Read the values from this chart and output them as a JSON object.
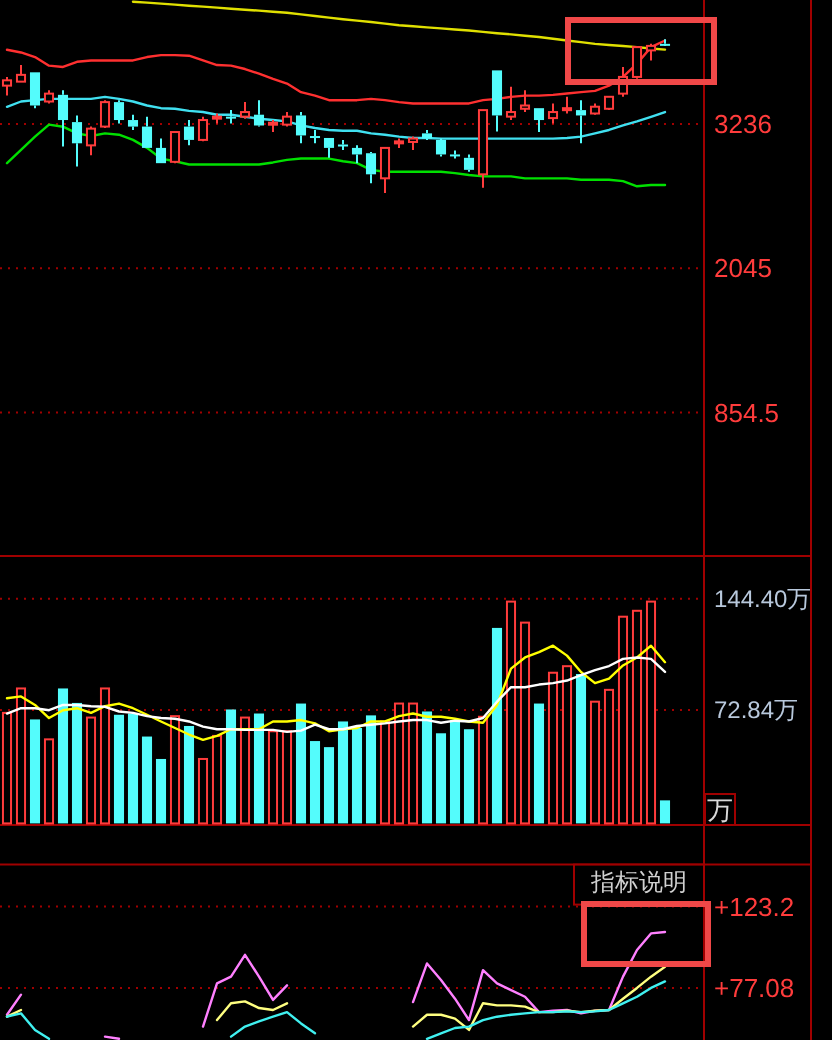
{
  "chart_data": [
    {
      "type": "candlestick",
      "categories": [
        null,
        null,
        null,
        null,
        null,
        null,
        null,
        null,
        null,
        null,
        null,
        null,
        null,
        null,
        null,
        null,
        null,
        null,
        null,
        null,
        null,
        null,
        null,
        null,
        null,
        null,
        null,
        null,
        null,
        null,
        null,
        null,
        null,
        null,
        null,
        null,
        null,
        null,
        null,
        null,
        null,
        null,
        null,
        null,
        null,
        null,
        null,
        null
      ],
      "ohlc": [
        [
          3553,
          3625,
          3471,
          3597
        ],
        [
          3586,
          3724,
          3586,
          3642
        ],
        [
          3663,
          3663,
          3367,
          3389
        ],
        [
          3422,
          3515,
          3405,
          3487
        ],
        [
          3477,
          3515,
          3050,
          3269
        ],
        [
          3252,
          3307,
          2886,
          3077
        ],
        [
          3060,
          3215,
          2978,
          3198
        ],
        [
          3215,
          3433,
          3203,
          3417
        ],
        [
          3417,
          3433,
          3241,
          3269
        ],
        [
          3269,
          3313,
          3187,
          3215
        ],
        [
          3215,
          3297,
          3039,
          3039
        ],
        [
          3039,
          3116,
          2913,
          2913
        ],
        [
          2924,
          3170,
          2913,
          3170
        ],
        [
          3215,
          3269,
          3060,
          3105
        ],
        [
          3105,
          3297,
          3093,
          3269
        ],
        [
          3290,
          3323,
          3241,
          3297
        ],
        [
          3297,
          3351,
          3241,
          3290
        ],
        [
          3297,
          3417,
          3280,
          3335
        ],
        [
          3313,
          3433,
          3215,
          3224
        ],
        [
          3241,
          3269,
          3170,
          3247
        ],
        [
          3231,
          3335,
          3215,
          3297
        ],
        [
          3307,
          3335,
          3077,
          3142
        ],
        [
          3137,
          3187,
          3077,
          3132
        ],
        [
          3121,
          3121,
          2957,
          3039
        ],
        [
          3067,
          3105,
          3022,
          3060
        ],
        [
          3039,
          3060,
          2913,
          2985
        ],
        [
          2995,
          3006,
          2748,
          2821
        ],
        [
          2788,
          3039,
          2666,
          3039
        ],
        [
          3088,
          3116,
          3039,
          3093
        ],
        [
          3088,
          3133,
          3022,
          3116
        ],
        [
          3159,
          3187,
          3105,
          3116
        ],
        [
          3105,
          3116,
          2968,
          2985
        ],
        [
          2985,
          3018,
          2952,
          2978
        ],
        [
          2957,
          2985,
          2842,
          2858
        ],
        [
          2821,
          3351,
          2711,
          3351
        ],
        [
          3679,
          3679,
          3175,
          3307
        ],
        [
          3297,
          3543,
          3269,
          3335
        ],
        [
          3362,
          3515,
          3335,
          3389
        ],
        [
          3367,
          3367,
          3170,
          3269
        ],
        [
          3285,
          3405,
          3241,
          3335
        ],
        [
          3362,
          3461,
          3323,
          3367
        ],
        [
          3351,
          3433,
          3077,
          3307
        ],
        [
          3323,
          3405,
          3313,
          3379
        ],
        [
          3362,
          3461,
          3351,
          3461
        ],
        [
          3487,
          3707,
          3461,
          3625
        ],
        [
          3625,
          3881,
          3609,
          3871
        ],
        [
          3844,
          3898,
          3761,
          3881
        ],
        [
          3898,
          3937,
          3881,
          3893
        ]
      ],
      "colors": [
        "#ff3c3c",
        "#ff3c3c",
        "#54fcfc",
        "#ff3c3c",
        "#54fcfc",
        "#54fcfc",
        "#ff3c3c",
        "#ff3c3c",
        "#54fcfc",
        "#54fcfc",
        "#54fcfc",
        "#54fcfc",
        "#ff3c3c",
        "#54fcfc",
        "#ff3c3c",
        "#ff3c3c",
        "#54fcfc",
        "#ff3c3c",
        "#54fcfc",
        "#ff3c3c",
        "#ff3c3c",
        "#54fcfc",
        "#54fcfc",
        "#54fcfc",
        "#54fcfc",
        "#54fcfc",
        "#54fcfc",
        "#ff3c3c",
        "#ff3c3c",
        "#ff3c3c",
        "#54fcfc",
        "#54fcfc",
        "#54fcfc",
        "#54fcfc",
        "#ff3c3c",
        "#54fcfc",
        "#ff3c3c",
        "#ff3c3c",
        "#54fcfc",
        "#ff3c3c",
        "#ff3c3c",
        "#54fcfc",
        "#ff3c3c",
        "#ff3c3c",
        "#ff3c3c",
        "#ff3c3c",
        "#ff3c3c",
        "#54fcfc"
      ],
      "series": [
        {
          "type": "line",
          "color": "#ff3030",
          "values": [
            3849,
            3827,
            3789,
            3718,
            3707,
            3750,
            3761,
            3761,
            3761,
            3761,
            3789,
            3805,
            3805,
            3800,
            3761,
            3723,
            3718,
            3690,
            3652,
            3608,
            3570,
            3499,
            3471,
            3433,
            3433,
            3433,
            3444,
            3433,
            3417,
            3406,
            3406,
            3406,
            3406,
            3406,
            3433,
            3444,
            3460,
            3471,
            3471,
            3477,
            3488,
            3499,
            3510,
            3553,
            3625,
            3734,
            3871,
            3926
          ]
        },
        {
          "type": "line",
          "color": "#40e0f0",
          "values": [
            3378,
            3422,
            3433,
            3444,
            3444,
            3444,
            3444,
            3460,
            3444,
            3422,
            3389,
            3367,
            3362,
            3345,
            3335,
            3313,
            3313,
            3296,
            3280,
            3269,
            3258,
            3225,
            3203,
            3187,
            3181,
            3181,
            3159,
            3148,
            3132,
            3121,
            3121,
            3116,
            3116,
            3116,
            3116,
            3116,
            3116,
            3116,
            3116,
            3116,
            3121,
            3132,
            3159,
            3187,
            3225,
            3258,
            3296,
            3335
          ]
        },
        {
          "type": "line",
          "color": "#00e000",
          "values": [
            2913,
            3023,
            3132,
            3231,
            3214,
            3159,
            3137,
            3159,
            3148,
            3105,
            3039,
            2951,
            2929,
            2902,
            2902,
            2902,
            2902,
            2902,
            2902,
            2919,
            2940,
            2951,
            2951,
            2951,
            2929,
            2913,
            2858,
            2842,
            2842,
            2842,
            2842,
            2842,
            2831,
            2815,
            2804,
            2804,
            2804,
            2787,
            2787,
            2787,
            2787,
            2776,
            2776,
            2776,
            2765,
            2722,
            2733,
            2733
          ]
        },
        {
          "type": "line",
          "color": "#e0e000",
          "values": [
            null,
            null,
            null,
            null,
            null,
            null,
            null,
            null,
            null,
            4246,
            4238,
            4230,
            4222,
            4213,
            4205,
            4197,
            4188,
            4180,
            4172,
            4163,
            4155,
            4141,
            4128,
            4114,
            4101,
            4090,
            4078,
            4065,
            4052,
            4043,
            4034,
            4026,
            4017,
            4008,
            3997,
            3986,
            3976,
            3965,
            3954,
            3940,
            3926,
            3912,
            3898,
            3889,
            3880,
            3871,
            3860,
            3850
          ]
        }
      ],
      "ylim": [
        -330,
        4260
      ],
      "yticks": [
        3236,
        2045,
        854.5
      ],
      "grid": "y"
    },
    {
      "type": "bar",
      "categories": [
        null,
        null,
        null,
        null,
        null,
        null,
        null,
        null,
        null,
        null,
        null,
        null,
        null,
        null,
        null,
        null,
        null,
        null,
        null,
        null,
        null,
        null,
        null,
        null,
        null,
        null,
        null,
        null,
        null,
        null,
        null,
        null,
        null,
        null,
        null,
        null,
        null,
        null,
        null,
        null,
        null,
        null,
        null,
        null,
        null,
        null,
        null,
        null
      ],
      "series": [
        {
          "type": "bar",
          "values": [
            71,
            86.7,
            66.8,
            54,
            86.7,
            77.4,
            68,
            86.7,
            69.8,
            70.6,
            55.8,
            41.4,
            68.9,
            62.6,
            41.4,
            56.2,
            73.2,
            68,
            70.6,
            59.2,
            59.2,
            77,
            52.9,
            49,
            65.5,
            61.3,
            69.4,
            65.5,
            77,
            77,
            71.9,
            57.9,
            66.4,
            60.5,
            68.5,
            125.6,
            142.5,
            129,
            77,
            96.8,
            101,
            96,
            78.2,
            85.8,
            132.8,
            136.6,
            142.5,
            14.8
          ],
          "colors": [
            "#ff3c3c",
            "#ff3c3c",
            "#54fcfc",
            "#ff3c3c",
            "#54fcfc",
            "#54fcfc",
            "#ff3c3c",
            "#ff3c3c",
            "#54fcfc",
            "#54fcfc",
            "#54fcfc",
            "#54fcfc",
            "#ff3c3c",
            "#54fcfc",
            "#ff3c3c",
            "#ff3c3c",
            "#54fcfc",
            "#ff3c3c",
            "#54fcfc",
            "#ff3c3c",
            "#ff3c3c",
            "#54fcfc",
            "#54fcfc",
            "#54fcfc",
            "#54fcfc",
            "#54fcfc",
            "#54fcfc",
            "#ff3c3c",
            "#ff3c3c",
            "#ff3c3c",
            "#54fcfc",
            "#54fcfc",
            "#54fcfc",
            "#54fcfc",
            "#ff3c3c",
            "#54fcfc",
            "#ff3c3c",
            "#ff3c3c",
            "#54fcfc",
            "#ff3c3c",
            "#ff3c3c",
            "#54fcfc",
            "#ff3c3c",
            "#ff3c3c",
            "#ff3c3c",
            "#ff3c3c",
            "#ff3c3c",
            "#54fcfc"
          ]
        },
        {
          "type": "line",
          "color": "#ffff00",
          "values": [
            80.4,
            81.6,
            76.1,
            67.7,
            72.7,
            74.0,
            71.0,
            75.3,
            77.0,
            74.0,
            69.8,
            65.5,
            61.3,
            57.1,
            53.7,
            56.2,
            60.5,
            60.5,
            60.5,
            65.5,
            65.5,
            66.4,
            64.3,
            59.2,
            60.5,
            61.3,
            65.5,
            65.5,
            68.9,
            70.6,
            68.5,
            68.5,
            67.2,
            65.5,
            64.7,
            76.1,
            99.4,
            106.6,
            110.0,
            114.2,
            107.8,
            97.3,
            90.1,
            93.0,
            101.5,
            106.6,
            114.2,
            103.6
          ]
        },
        {
          "type": "line",
          "color": "#ffffff",
          "values": [
            70.6,
            74.0,
            74.0,
            72.7,
            76.1,
            76.1,
            75.3,
            74.9,
            71.9,
            71.0,
            68.9,
            67.7,
            67.2,
            65.5,
            62.2,
            60.5,
            60.5,
            60.1,
            60.1,
            60.1,
            58.8,
            59.6,
            63.4,
            60.5,
            60.5,
            62.6,
            63.4,
            64.3,
            65.5,
            66.4,
            66.4,
            64.7,
            66.0,
            65.5,
            67.7,
            78.2,
            87.5,
            87.5,
            89.2,
            90.1,
            91.8,
            95.2,
            98.5,
            101.1,
            105.7,
            106.6,
            105.7,
            97.3
          ]
        }
      ],
      "ylim": [
        0,
        171.8
      ],
      "yticks": [
        {
          "value": 144.4,
          "label": "144.40万"
        },
        {
          "value": 72.84,
          "label": "72.84万"
        }
      ],
      "grid": "y",
      "annotations": [
        "万"
      ]
    },
    {
      "type": "line",
      "categories": [
        null,
        null,
        null,
        null,
        null,
        null,
        null,
        null,
        null,
        null,
        null,
        null,
        null,
        null,
        null,
        null,
        null,
        null,
        null,
        null,
        null,
        null,
        null,
        null,
        null,
        null,
        null,
        null,
        null,
        null,
        null,
        null,
        null,
        null,
        null,
        null,
        null,
        null,
        null,
        null,
        null,
        null,
        null,
        null,
        null,
        null,
        null,
        null
      ],
      "series": [
        {
          "color": "#ff80ff",
          "values": [
            61.9,
            73.3,
            null,
            null,
            null,
            null,
            null,
            49.5,
            48.3,
            null,
            null,
            null,
            null,
            null,
            55.2,
            79.7,
            83.5,
            95.9,
            83.5,
            70.3,
            78.6,
            null,
            null,
            null,
            null,
            null,
            null,
            null,
            null,
            69.1,
            91.0,
            81.6,
            71.0,
            58.9,
            87.2,
            79.7,
            75.9,
            72.1,
            63.4,
            64.2,
            64.6,
            62.7,
            64.2,
            64.6,
            83.5,
            98.6,
            108.0,
            108.8
          ]
        },
        {
          "color": "#ffff80",
          "values": [
            60.8,
            64.6,
            null,
            null,
            null,
            null,
            null,
            null,
            null,
            null,
            null,
            null,
            null,
            null,
            null,
            58.9,
            68.4,
            69.5,
            65.7,
            64.6,
            68.4,
            null,
            null,
            null,
            null,
            null,
            null,
            null,
            null,
            55.2,
            61.9,
            61.9,
            59.7,
            53.3,
            68.4,
            67.2,
            67.2,
            66.5,
            63.4,
            63.4,
            64.2,
            63.4,
            64.2,
            64.6,
            71.0,
            77.1,
            83.5,
            89.1
          ]
        },
        {
          "color": "#40f0f0",
          "values": [
            60.8,
            62.7,
            53.3,
            48.3,
            null,
            null,
            null,
            null,
            null,
            null,
            null,
            null,
            null,
            null,
            null,
            null,
            49.5,
            55.2,
            58.2,
            60.8,
            63.4,
            57.0,
            51.4,
            null,
            null,
            null,
            null,
            null,
            null,
            null,
            48.3,
            51.4,
            54.4,
            55.2,
            58.9,
            60.8,
            61.9,
            62.7,
            63.4,
            63.4,
            63.8,
            63.4,
            63.8,
            64.6,
            68.4,
            72.1,
            77.1,
            80.8
          ]
        }
      ],
      "ylim": [
        47.6,
        147
      ],
      "yticks": [
        {
          "value": 123.2,
          "label": "+123.2"
        },
        {
          "value": 77.08,
          "label": "+77.08"
        }
      ],
      "grid": "y",
      "annotations": [
        "指标说明"
      ]
    }
  ]
}
